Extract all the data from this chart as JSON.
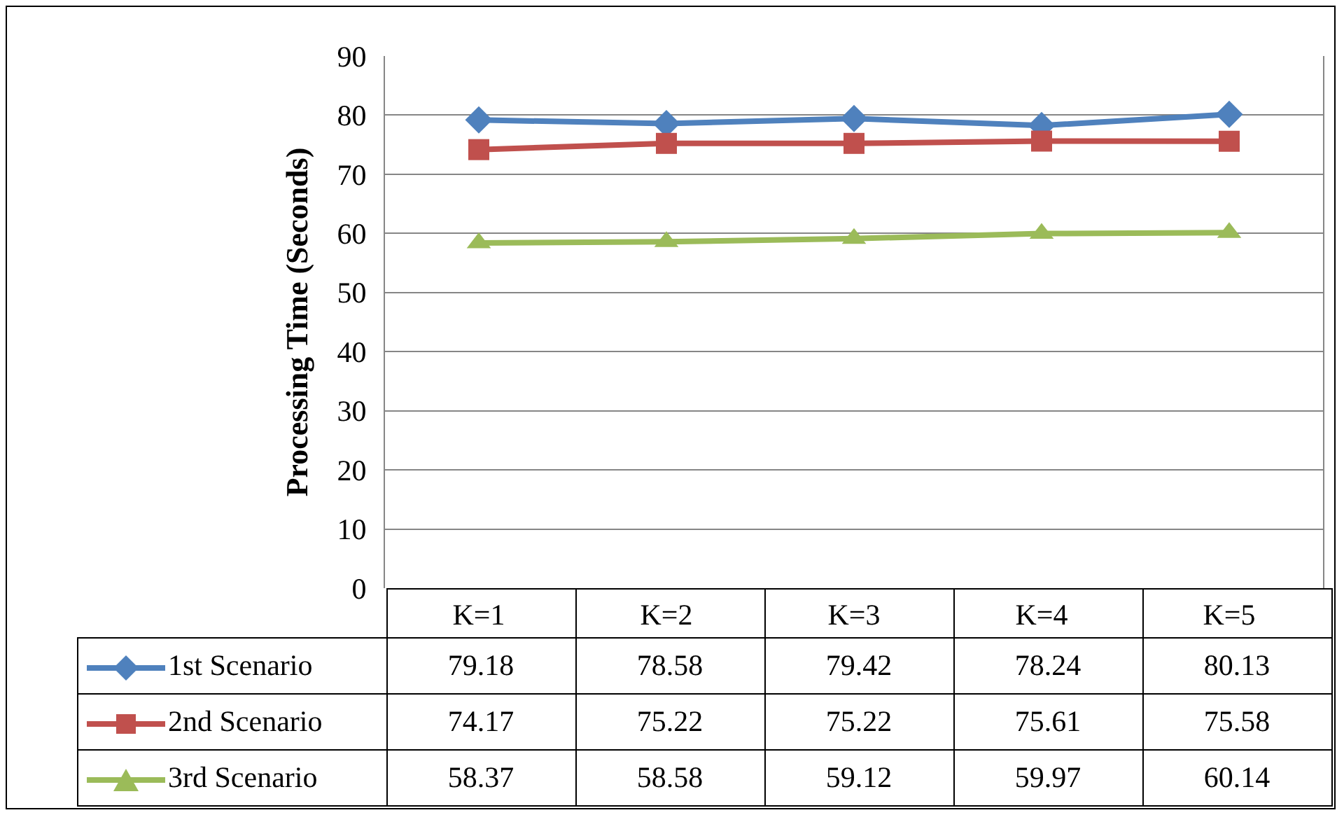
{
  "chart_data": {
    "type": "line",
    "ylabel": "Processing Time (Seconds)",
    "categories": [
      "K=1",
      "K=2",
      "K=3",
      "K=4",
      "K=5"
    ],
    "ylim": [
      0,
      90
    ],
    "yticks": [
      0,
      10,
      20,
      30,
      40,
      50,
      60,
      70,
      80,
      90
    ],
    "grid": "y",
    "legend": "bottom",
    "data_labels": true,
    "series": [
      {
        "name": "1st Scenario",
        "color": "#4f81bd",
        "marker": "diamond",
        "values": [
          79.18,
          78.58,
          79.42,
          78.24,
          80.13
        ]
      },
      {
        "name": "2nd Scenario",
        "color": "#c0504d",
        "marker": "square",
        "values": [
          74.17,
          75.22,
          75.22,
          75.61,
          75.58
        ]
      },
      {
        "name": "3rd Scenario",
        "color": "#9bbb59",
        "marker": "triangle",
        "values": [
          58.37,
          58.58,
          59.12,
          59.97,
          60.14
        ]
      }
    ]
  }
}
